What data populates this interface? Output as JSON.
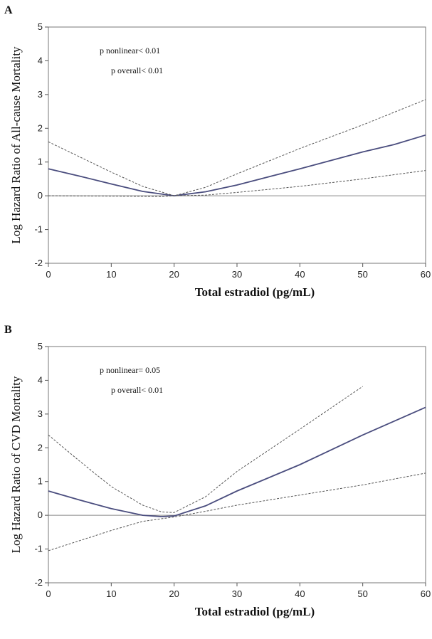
{
  "chart_data": [
    {
      "panel_label": "A",
      "type": "line",
      "xlabel": "Total estradiol (pg/mL)",
      "ylabel": "Log Hazard Ratio of All-cause Mortality",
      "xlim": [
        0,
        60
      ],
      "ylim": [
        -2,
        5
      ],
      "xticks": [
        0,
        10,
        20,
        30,
        40,
        50,
        60
      ],
      "yticks": [
        -2,
        -1,
        0,
        1,
        2,
        3,
        4,
        5
      ],
      "reference_line_y": 0,
      "annotations": [
        "p nonlinear< 0.01",
        "p overall< 0.01"
      ],
      "series": [
        {
          "role": "estimate",
          "color": "#4a4d7e",
          "points": [
            [
              0,
              0.8
            ],
            [
              5,
              0.58
            ],
            [
              10,
              0.35
            ],
            [
              15,
              0.13
            ],
            [
              20,
              0.0
            ],
            [
              25,
              0.12
            ],
            [
              30,
              0.32
            ],
            [
              40,
              0.8
            ],
            [
              50,
              1.3
            ],
            [
              55,
              1.52
            ],
            [
              60,
              1.8
            ]
          ]
        },
        {
          "role": "upper 95% CI",
          "color": "#555555",
          "points": [
            [
              0,
              1.6
            ],
            [
              5,
              1.15
            ],
            [
              10,
              0.7
            ],
            [
              15,
              0.28
            ],
            [
              20,
              0.0
            ],
            [
              25,
              0.25
            ],
            [
              30,
              0.65
            ],
            [
              40,
              1.4
            ],
            [
              50,
              2.1
            ],
            [
              60,
              2.85
            ]
          ]
        },
        {
          "role": "lower 95% CI",
          "color": "#555555",
          "points": [
            [
              0,
              0.0
            ],
            [
              10,
              -0.01
            ],
            [
              18,
              -0.02
            ],
            [
              20,
              0.0
            ],
            [
              25,
              0.02
            ],
            [
              30,
              0.1
            ],
            [
              40,
              0.28
            ],
            [
              50,
              0.5
            ],
            [
              60,
              0.75
            ]
          ]
        }
      ]
    },
    {
      "panel_label": "B",
      "type": "line",
      "xlabel": "Total estradiol (pg/mL)",
      "ylabel": "Log Hazard Ratio of CVD Mortality",
      "xlim": [
        0,
        60
      ],
      "ylim": [
        -2,
        5
      ],
      "xticks": [
        0,
        10,
        20,
        30,
        40,
        50,
        60
      ],
      "yticks": [
        -2,
        -1,
        0,
        1,
        2,
        3,
        4,
        5
      ],
      "reference_line_y": 0,
      "annotations": [
        "p nonlinear= 0.05",
        "p overall< 0.01"
      ],
      "series": [
        {
          "role": "estimate",
          "color": "#4a4d7e",
          "points": [
            [
              0,
              0.72
            ],
            [
              5,
              0.45
            ],
            [
              10,
              0.2
            ],
            [
              15,
              0.0
            ],
            [
              18,
              -0.04
            ],
            [
              20,
              -0.02
            ],
            [
              25,
              0.28
            ],
            [
              30,
              0.72
            ],
            [
              40,
              1.5
            ],
            [
              50,
              2.38
            ],
            [
              60,
              3.2
            ]
          ]
        },
        {
          "role": "upper 95% CI",
          "color": "#555555",
          "points": [
            [
              0,
              2.38
            ],
            [
              5,
              1.6
            ],
            [
              10,
              0.85
            ],
            [
              15,
              0.3
            ],
            [
              18,
              0.1
            ],
            [
              20,
              0.08
            ],
            [
              25,
              0.55
            ],
            [
              30,
              1.3
            ],
            [
              40,
              2.55
            ],
            [
              50,
              3.82
            ]
          ]
        },
        {
          "role": "lower 95% CI",
          "color": "#555555",
          "points": [
            [
              0,
              -1.05
            ],
            [
              5,
              -0.75
            ],
            [
              10,
              -0.45
            ],
            [
              15,
              -0.18
            ],
            [
              20,
              -0.05
            ],
            [
              25,
              0.12
            ],
            [
              30,
              0.3
            ],
            [
              40,
              0.6
            ],
            [
              50,
              0.9
            ],
            [
              60,
              1.25
            ]
          ]
        }
      ]
    }
  ]
}
